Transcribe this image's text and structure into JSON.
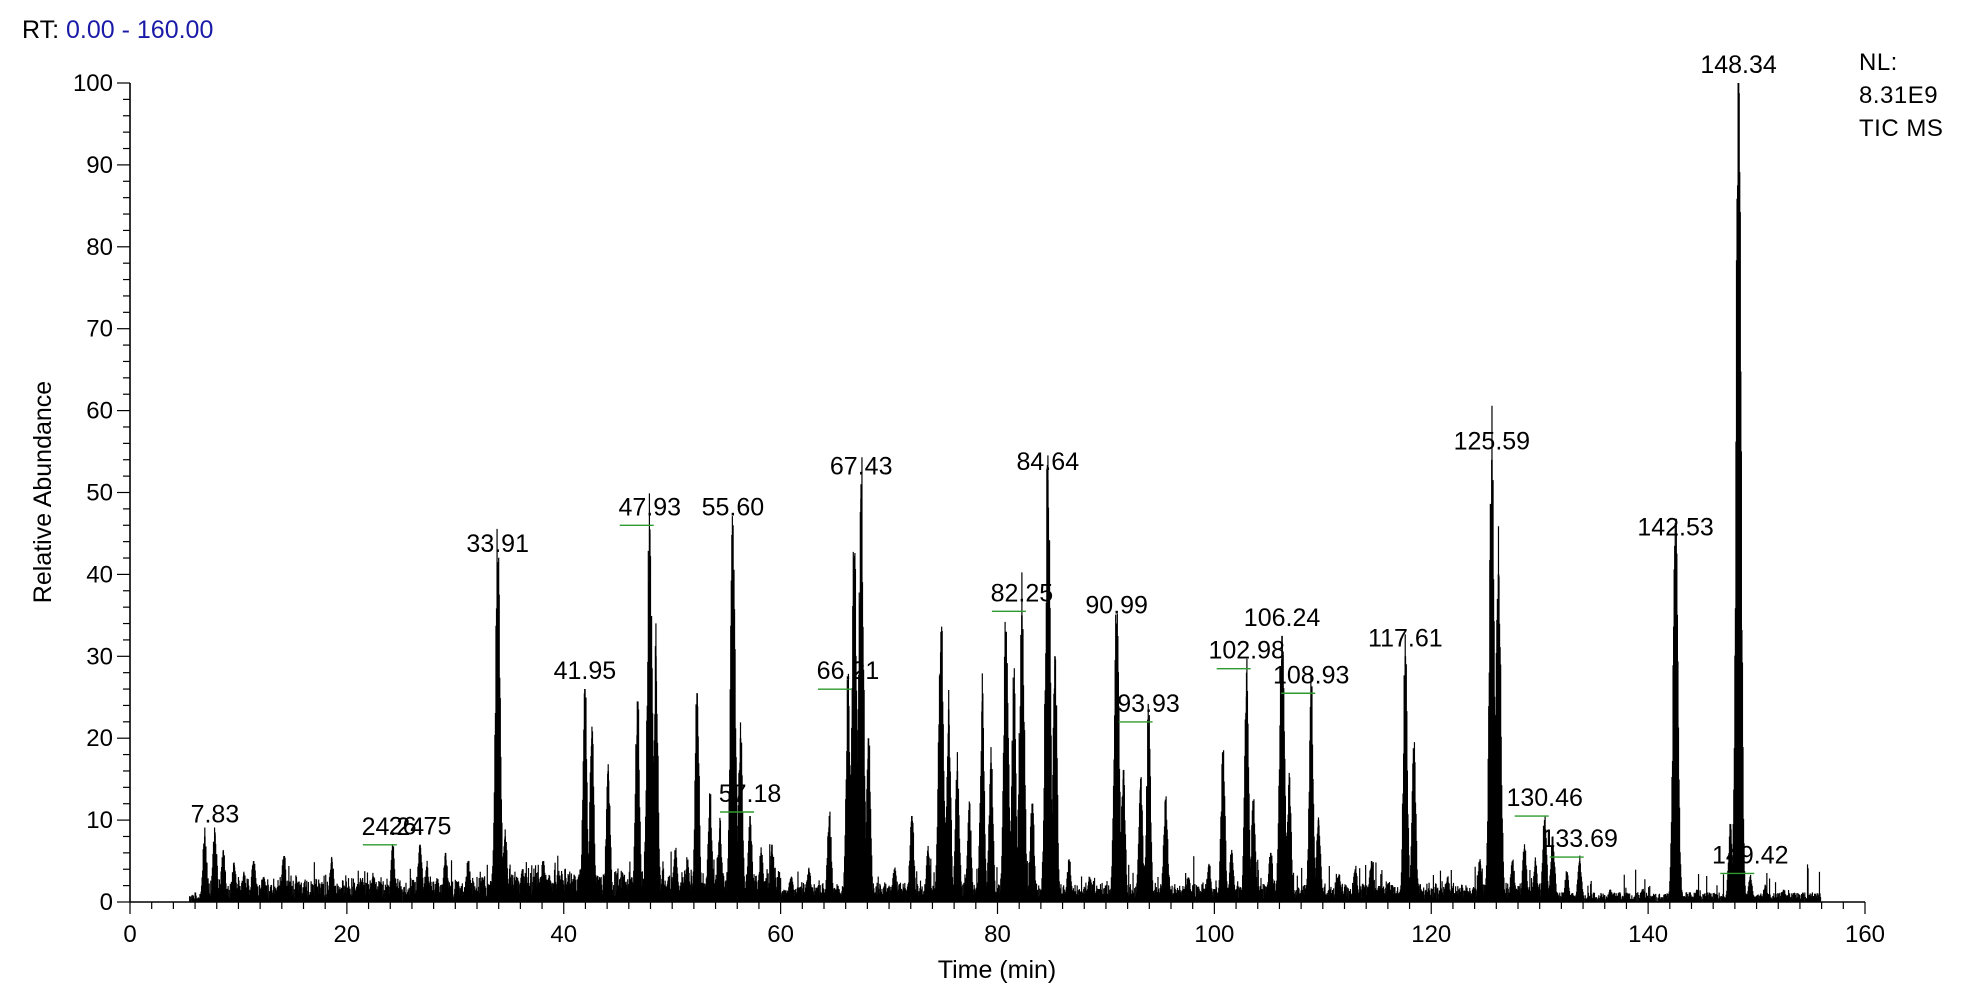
{
  "header": {
    "rt_label": "RT:",
    "rt_range": "0.00 - 160.00"
  },
  "nl": {
    "label": "NL:",
    "value": "8.31E9",
    "trace": "TIC MS"
  },
  "colors": {
    "trace": "#000000",
    "label_leader": "#2e9a2e",
    "rt_value": "#1a1aa8"
  },
  "chart_data": {
    "type": "line",
    "xlabel": "Time (min)",
    "ylabel": "Relative Abundance",
    "xlim": [
      0,
      160
    ],
    "ylim": [
      0,
      100
    ],
    "x_ticks": [
      0,
      20,
      40,
      60,
      80,
      100,
      120,
      140,
      160
    ],
    "y_ticks": [
      0,
      10,
      20,
      30,
      40,
      50,
      60,
      70,
      80,
      90,
      100
    ],
    "baseline": 0.8,
    "peaks": [
      {
        "x": 6.9,
        "y": 8.0
      },
      {
        "x": 7.83,
        "y": 8.5
      },
      {
        "x": 8.6,
        "y": 6.2
      },
      {
        "x": 9.6,
        "y": 4.5
      },
      {
        "x": 10.5,
        "y": 3.5
      },
      {
        "x": 11.4,
        "y": 5.0
      },
      {
        "x": 12.3,
        "y": 3.0
      },
      {
        "x": 14.2,
        "y": 5.6
      },
      {
        "x": 16.1,
        "y": 2.0
      },
      {
        "x": 18.6,
        "y": 5.3
      },
      {
        "x": 21.0,
        "y": 2.2
      },
      {
        "x": 22.4,
        "y": 3.0
      },
      {
        "x": 24.24,
        "y": 6.5
      },
      {
        "x": 26.75,
        "y": 7.0
      },
      {
        "x": 27.4,
        "y": 4.0
      },
      {
        "x": 29.1,
        "y": 6.0
      },
      {
        "x": 31.2,
        "y": 5.0
      },
      {
        "x": 32.5,
        "y": 3.0
      },
      {
        "x": 33.91,
        "y": 41.5
      },
      {
        "x": 34.6,
        "y": 8.0
      },
      {
        "x": 36.2,
        "y": 4.0
      },
      {
        "x": 38.1,
        "y": 5.0
      },
      {
        "x": 39.6,
        "y": 3.0
      },
      {
        "x": 41.95,
        "y": 26.0
      },
      {
        "x": 42.6,
        "y": 20.0
      },
      {
        "x": 44.1,
        "y": 16.0
      },
      {
        "x": 46.8,
        "y": 24.5
      },
      {
        "x": 47.93,
        "y": 45.5
      },
      {
        "x": 48.5,
        "y": 30.0
      },
      {
        "x": 50.3,
        "y": 6.0
      },
      {
        "x": 51.4,
        "y": 5.0
      },
      {
        "x": 52.3,
        "y": 25.5
      },
      {
        "x": 53.5,
        "y": 12.0
      },
      {
        "x": 54.4,
        "y": 9.0
      },
      {
        "x": 55.6,
        "y": 46.0
      },
      {
        "x": 56.3,
        "y": 20.0
      },
      {
        "x": 57.18,
        "y": 10.5
      },
      {
        "x": 58.2,
        "y": 6.0
      },
      {
        "x": 59.2,
        "y": 7.0
      },
      {
        "x": 61.0,
        "y": 3.0
      },
      {
        "x": 62.6,
        "y": 4.0
      },
      {
        "x": 64.5,
        "y": 10.5
      },
      {
        "x": 66.21,
        "y": 25.5
      },
      {
        "x": 66.8,
        "y": 42.0
      },
      {
        "x": 67.43,
        "y": 51.0
      },
      {
        "x": 68.1,
        "y": 20.0
      },
      {
        "x": 70.5,
        "y": 4.0
      },
      {
        "x": 72.1,
        "y": 10.5
      },
      {
        "x": 73.6,
        "y": 6.0
      },
      {
        "x": 74.8,
        "y": 33.0
      },
      {
        "x": 75.5,
        "y": 23.5
      },
      {
        "x": 76.3,
        "y": 16.0
      },
      {
        "x": 77.4,
        "y": 11.0
      },
      {
        "x": 78.6,
        "y": 24.5
      },
      {
        "x": 79.4,
        "y": 17.0
      },
      {
        "x": 80.8,
        "y": 33.0
      },
      {
        "x": 81.5,
        "y": 26.0
      },
      {
        "x": 82.25,
        "y": 35.0
      },
      {
        "x": 83.2,
        "y": 12.0
      },
      {
        "x": 84.64,
        "y": 51.5
      },
      {
        "x": 85.3,
        "y": 30.0
      },
      {
        "x": 86.6,
        "y": 5.0
      },
      {
        "x": 88.5,
        "y": 3.0
      },
      {
        "x": 90.99,
        "y": 34.0
      },
      {
        "x": 91.6,
        "y": 15.0
      },
      {
        "x": 93.2,
        "y": 14.0
      },
      {
        "x": 93.93,
        "y": 21.5
      },
      {
        "x": 95.5,
        "y": 12.5
      },
      {
        "x": 97.6,
        "y": 3.0
      },
      {
        "x": 99.5,
        "y": 4.5
      },
      {
        "x": 100.8,
        "y": 18.0
      },
      {
        "x": 101.6,
        "y": 6.0
      },
      {
        "x": 102.98,
        "y": 28.0
      },
      {
        "x": 103.6,
        "y": 12.0
      },
      {
        "x": 105.2,
        "y": 6.0
      },
      {
        "x": 106.24,
        "y": 32.5
      },
      {
        "x": 106.9,
        "y": 14.0
      },
      {
        "x": 108.93,
        "y": 25.0
      },
      {
        "x": 109.6,
        "y": 10.0
      },
      {
        "x": 111.5,
        "y": 3.0
      },
      {
        "x": 113.0,
        "y": 4.0
      },
      {
        "x": 114.5,
        "y": 5.0
      },
      {
        "x": 117.61,
        "y": 30.0
      },
      {
        "x": 118.4,
        "y": 18.0
      },
      {
        "x": 121.5,
        "y": 3.0
      },
      {
        "x": 124.5,
        "y": 5.0
      },
      {
        "x": 125.59,
        "y": 54.0
      },
      {
        "x": 126.2,
        "y": 40.0
      },
      {
        "x": 127.5,
        "y": 5.0
      },
      {
        "x": 128.6,
        "y": 6.5
      },
      {
        "x": 129.6,
        "y": 5.0
      },
      {
        "x": 130.46,
        "y": 10.0
      },
      {
        "x": 131.2,
        "y": 8.0
      },
      {
        "x": 132.5,
        "y": 3.5
      },
      {
        "x": 133.69,
        "y": 5.0
      },
      {
        "x": 136.5,
        "y": 1.5
      },
      {
        "x": 139.5,
        "y": 1.5
      },
      {
        "x": 142.53,
        "y": 43.5
      },
      {
        "x": 144.5,
        "y": 1.5
      },
      {
        "x": 147.6,
        "y": 9.5
      },
      {
        "x": 148.34,
        "y": 100.0
      },
      {
        "x": 149.42,
        "y": 3.0
      },
      {
        "x": 150.8,
        "y": 2.0
      },
      {
        "x": 152.5,
        "y": 1.5
      }
    ],
    "labels": [
      {
        "text": "7.83",
        "x": 7.83,
        "y": 8.5
      },
      {
        "text": "24.24",
        "x": 24.24,
        "y": 6.5,
        "leader": true
      },
      {
        "text": "26.75",
        "x": 26.75,
        "y": 7.0
      },
      {
        "text": "33.91",
        "x": 33.91,
        "y": 41.5
      },
      {
        "text": "41.95",
        "x": 41.95,
        "y": 26.0
      },
      {
        "text": "47.93",
        "x": 47.93,
        "y": 45.5,
        "leader": true
      },
      {
        "text": "55.60",
        "x": 55.6,
        "y": 46.0
      },
      {
        "text": "57.18",
        "x": 57.18,
        "y": 10.5,
        "leader": true
      },
      {
        "text": "66.21",
        "x": 66.21,
        "y": 25.5,
        "leader": true
      },
      {
        "text": "67.43",
        "x": 67.43,
        "y": 51.0
      },
      {
        "text": "82.25",
        "x": 82.25,
        "y": 35.0,
        "leader": true
      },
      {
        "text": "84.64",
        "x": 84.64,
        "y": 51.5
      },
      {
        "text": "90.99",
        "x": 90.99,
        "y": 34.0
      },
      {
        "text": "93.93",
        "x": 93.93,
        "y": 21.5,
        "leader": true
      },
      {
        "text": "102.98",
        "x": 102.98,
        "y": 28.0,
        "leader": true
      },
      {
        "text": "106.24",
        "x": 106.24,
        "y": 32.5
      },
      {
        "text": "108.93",
        "x": 108.93,
        "y": 25.0,
        "leader": true
      },
      {
        "text": "117.61",
        "x": 117.61,
        "y": 30.0
      },
      {
        "text": "125.59",
        "x": 125.59,
        "y": 54.0
      },
      {
        "text": "130.46",
        "x": 130.46,
        "y": 10.0,
        "leader": true
      },
      {
        "text": "133.69",
        "x": 133.69,
        "y": 5.0,
        "leader": true
      },
      {
        "text": "142.53",
        "x": 142.53,
        "y": 43.5
      },
      {
        "text": "148.34",
        "x": 148.34,
        "y": 100.0
      },
      {
        "text": "149.42",
        "x": 149.42,
        "y": 3.0,
        "leader": true
      }
    ]
  }
}
